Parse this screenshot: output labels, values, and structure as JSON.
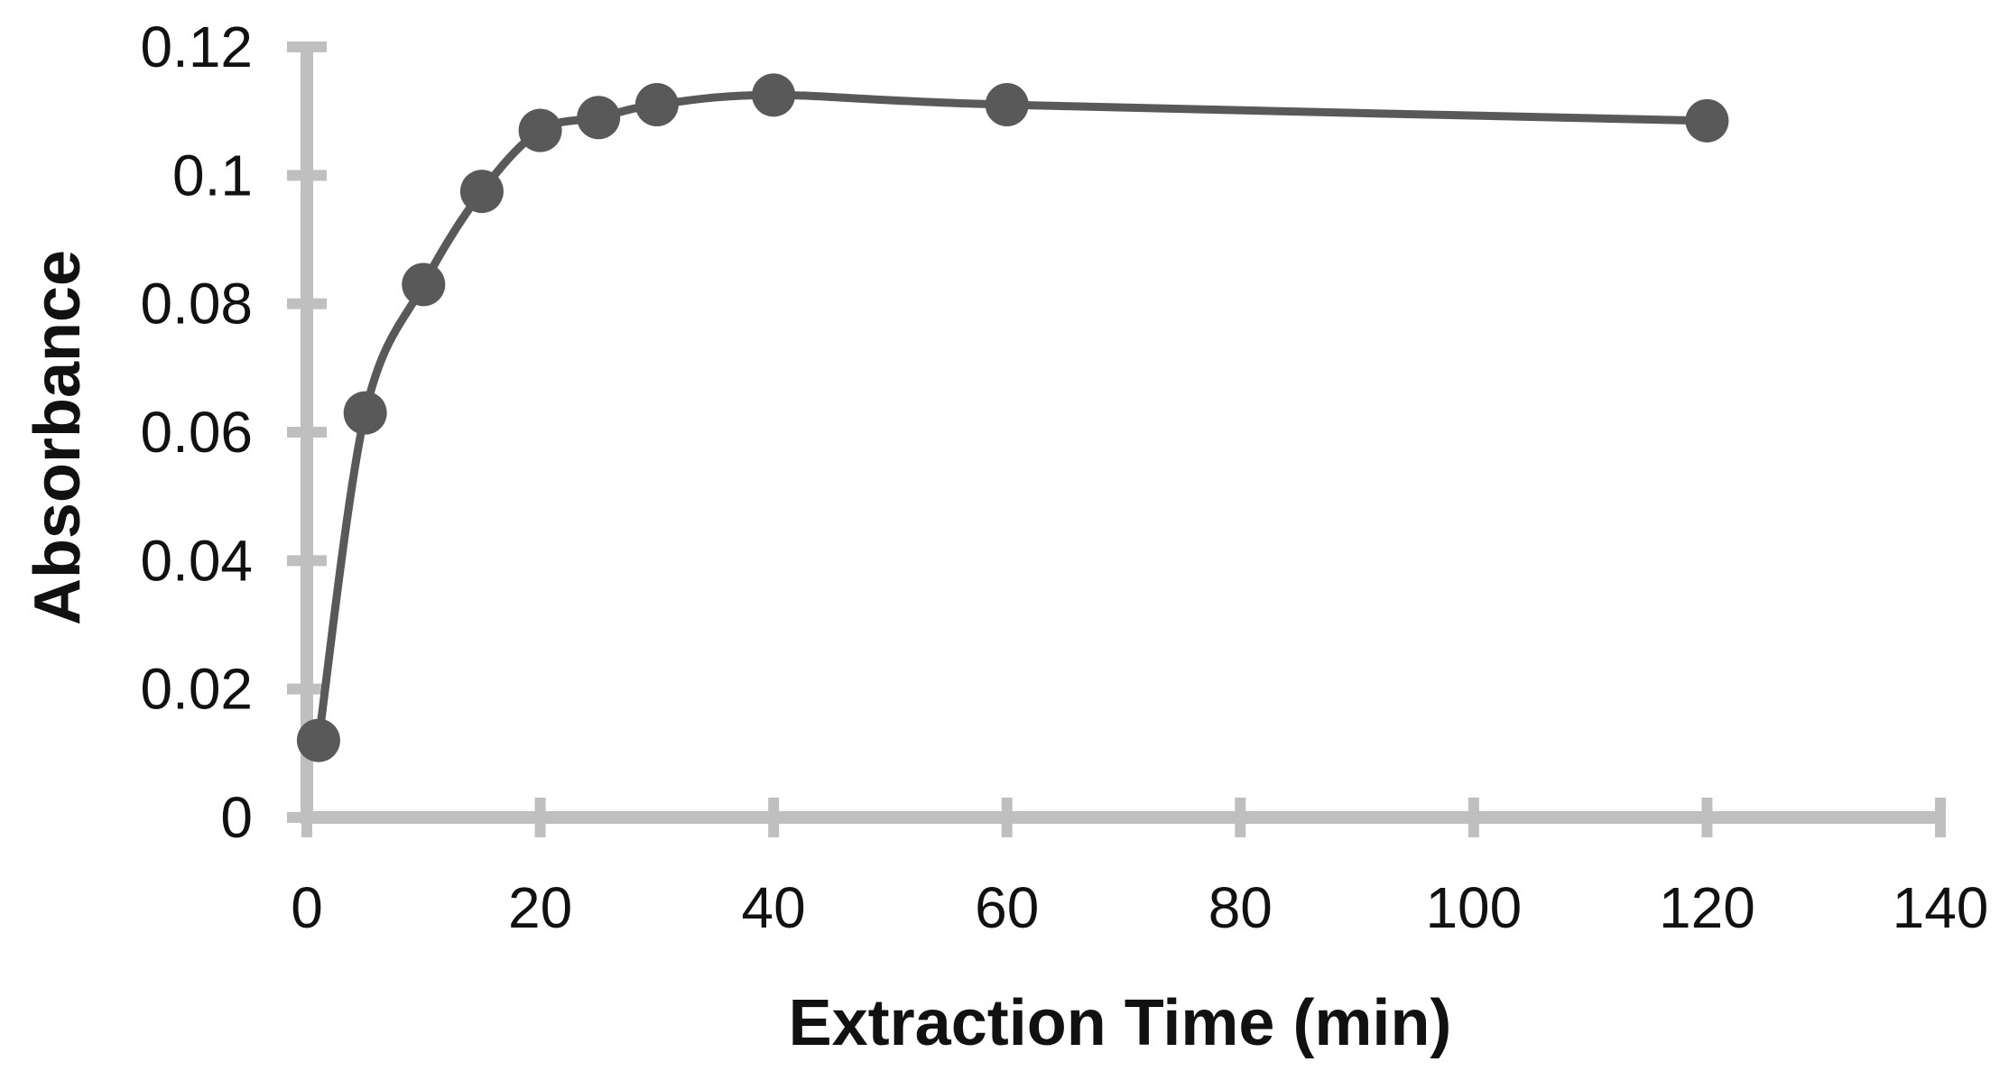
{
  "chart_data": {
    "type": "line",
    "title": "",
    "xlabel": "Extraction Time (min)",
    "ylabel": "Absorbance",
    "xlim": [
      0,
      140
    ],
    "ylim": [
      0,
      0.12
    ],
    "xticks": [
      0,
      20,
      40,
      60,
      80,
      100,
      120,
      140
    ],
    "xtick_labels": [
      "0",
      "20",
      "40",
      "60",
      "80",
      "100",
      "120",
      "140"
    ],
    "yticks": [
      0,
      0.02,
      0.04,
      0.06,
      0.08,
      0.1,
      0.12
    ],
    "ytick_labels": [
      "0",
      "0.02",
      "0.04",
      "0.06",
      "0.08",
      "0.1",
      "0.12"
    ],
    "grid": false,
    "legend": "none",
    "series": [
      {
        "name": "Absorbance",
        "smooth": true,
        "marker": "circle",
        "color": "#595959",
        "axis_color": "#bfbfbf",
        "x": [
          1,
          5,
          10,
          15,
          20,
          25,
          30,
          40,
          60,
          120
        ],
        "y": [
          0.012,
          0.063,
          0.083,
          0.0975,
          0.107,
          0.109,
          0.111,
          0.1125,
          0.111,
          0.1085
        ]
      }
    ]
  }
}
